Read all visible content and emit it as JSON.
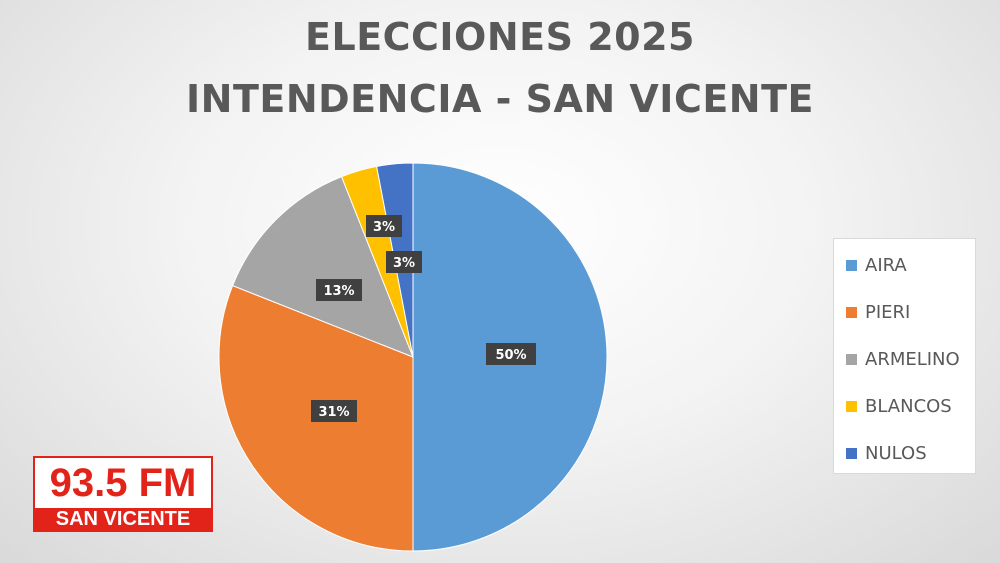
{
  "title_line1": "ELECCIONES 2025",
  "title_line2": "INTENDENCIA - SAN VICENTE",
  "chart_data": {
    "type": "pie",
    "categories": [
      "AIRA",
      "PIERI",
      "ARMELINO",
      "BLANCOS",
      "NULOS"
    ],
    "values": [
      50,
      31,
      13,
      3,
      3
    ],
    "labels": [
      "50%",
      "31%",
      "13%",
      "3%",
      "3%"
    ],
    "colors": [
      "#5b9bd5",
      "#ed7d31",
      "#a5a5a5",
      "#ffc000",
      "#4472c4"
    ],
    "legend_position": "right",
    "start": "top",
    "direction": "clockwise"
  },
  "logo": {
    "frequency": "93.5 FM",
    "name": "SAN VICENTE"
  }
}
